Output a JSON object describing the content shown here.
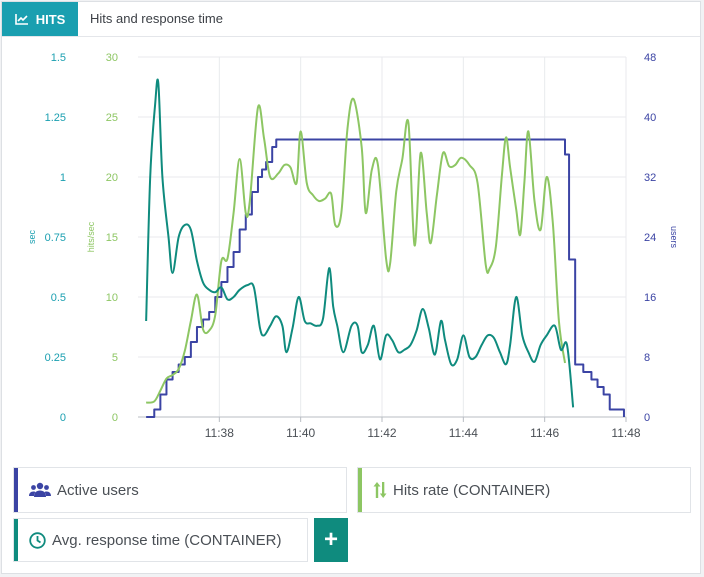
{
  "header": {
    "tab_label": "HITS",
    "title": "Hits and response time"
  },
  "legend": {
    "active_users": "Active users",
    "hits_rate": "Hits rate (CONTAINER)",
    "response_time": "Avg. response time (CONTAINER)",
    "add_label": "+"
  },
  "colors": {
    "accent": "#1a9fb0",
    "users": "#3b44a4",
    "hits": "#8dc663",
    "response": "#0f8b7e"
  },
  "chart_data": {
    "type": "line",
    "x_ticks": [
      "11:38",
      "11:40",
      "11:42",
      "11:44",
      "11:46",
      "11:48"
    ],
    "x_tick_minutes": [
      38,
      40,
      42,
      44,
      46,
      48
    ],
    "xlim": [
      36.0,
      48.0
    ],
    "axes": {
      "sec": {
        "label": "sec",
        "ticks": [
          "0",
          "0.25",
          "0.5",
          "0.75",
          "1",
          "1.25",
          "1.5"
        ],
        "ylim": [
          0,
          1.5
        ]
      },
      "hits": {
        "label": "hits/sec",
        "ticks": [
          "0",
          "5",
          "10",
          "15",
          "20",
          "25",
          "30"
        ],
        "ylim": [
          0,
          30
        ]
      },
      "users": {
        "label": "users",
        "ticks": [
          "0",
          "8",
          "16",
          "24",
          "32",
          "40",
          "48"
        ],
        "ylim": [
          0,
          48
        ]
      }
    },
    "grid": true,
    "series": [
      {
        "name": "Active users",
        "axis": "users",
        "step": true,
        "points": [
          [
            36.2,
            0
          ],
          [
            36.4,
            1
          ],
          [
            36.55,
            3
          ],
          [
            36.7,
            5
          ],
          [
            36.85,
            6
          ],
          [
            37.0,
            7
          ],
          [
            37.15,
            8
          ],
          [
            37.3,
            10
          ],
          [
            37.45,
            12
          ],
          [
            37.6,
            13
          ],
          [
            37.75,
            14
          ],
          [
            37.9,
            16
          ],
          [
            38.05,
            18
          ],
          [
            38.2,
            20
          ],
          [
            38.35,
            22
          ],
          [
            38.5,
            25
          ],
          [
            38.65,
            27
          ],
          [
            38.8,
            30
          ],
          [
            38.95,
            32
          ],
          [
            39.05,
            33
          ],
          [
            39.15,
            34
          ],
          [
            39.3,
            36
          ],
          [
            39.4,
            37
          ],
          [
            46.3,
            37
          ],
          [
            46.5,
            35
          ],
          [
            46.6,
            21
          ],
          [
            46.75,
            7
          ],
          [
            46.95,
            6
          ],
          [
            47.15,
            5
          ],
          [
            47.3,
            4
          ],
          [
            47.45,
            3
          ],
          [
            47.6,
            1
          ],
          [
            47.95,
            0
          ]
        ]
      },
      {
        "name": "Hits rate (CONTAINER)",
        "axis": "hits",
        "step": false,
        "points": [
          [
            36.2,
            1.2
          ],
          [
            36.4,
            1.3
          ],
          [
            36.55,
            2.2
          ],
          [
            36.7,
            3.2
          ],
          [
            36.85,
            3.5
          ],
          [
            37.0,
            4.0
          ],
          [
            37.15,
            5.5
          ],
          [
            37.3,
            8.0
          ],
          [
            37.45,
            10.2
          ],
          [
            37.6,
            7.3
          ],
          [
            37.75,
            7.2
          ],
          [
            37.9,
            8.5
          ],
          [
            38.05,
            13.0
          ],
          [
            38.2,
            13.2
          ],
          [
            38.35,
            17.0
          ],
          [
            38.5,
            21.5
          ],
          [
            38.65,
            17.0
          ],
          [
            38.75,
            18.0
          ],
          [
            38.95,
            25.8
          ],
          [
            39.1,
            23.2
          ],
          [
            39.25,
            20.0
          ],
          [
            39.45,
            20.3
          ],
          [
            39.6,
            21.0
          ],
          [
            39.75,
            20.8
          ],
          [
            39.9,
            19.5
          ],
          [
            40.0,
            23.8
          ],
          [
            40.15,
            19.5
          ],
          [
            40.3,
            18.5
          ],
          [
            40.45,
            18.0
          ],
          [
            40.6,
            18.2
          ],
          [
            40.75,
            18.6
          ],
          [
            40.85,
            16.0
          ],
          [
            41.0,
            17.0
          ],
          [
            41.15,
            24.0
          ],
          [
            41.3,
            26.5
          ],
          [
            41.5,
            22.5
          ],
          [
            41.6,
            17.0
          ],
          [
            41.75,
            20.6
          ],
          [
            41.9,
            21.0
          ],
          [
            42.1,
            13.2
          ],
          [
            42.2,
            12.8
          ],
          [
            42.35,
            18.8
          ],
          [
            42.5,
            21.5
          ],
          [
            42.65,
            24.5
          ],
          [
            42.8,
            14.3
          ],
          [
            42.95,
            22.0
          ],
          [
            43.1,
            17.0
          ],
          [
            43.2,
            14.5
          ],
          [
            43.35,
            18.5
          ],
          [
            43.5,
            22.0
          ],
          [
            43.65,
            20.9
          ],
          [
            43.8,
            21.0
          ],
          [
            43.95,
            21.6
          ],
          [
            44.15,
            21.0
          ],
          [
            44.35,
            19.5
          ],
          [
            44.55,
            12.7
          ],
          [
            44.65,
            12.4
          ],
          [
            44.8,
            14.2
          ],
          [
            44.95,
            20.2
          ],
          [
            45.05,
            23.3
          ],
          [
            45.15,
            20.8
          ],
          [
            45.3,
            17.3
          ],
          [
            45.4,
            15.2
          ],
          [
            45.5,
            19.5
          ],
          [
            45.6,
            23.8
          ],
          [
            45.75,
            18.0
          ],
          [
            45.9,
            15.6
          ],
          [
            46.05,
            20.0
          ],
          [
            46.2,
            16.2
          ],
          [
            46.35,
            8.0
          ],
          [
            46.5,
            4.5
          ]
        ]
      },
      {
        "name": "Avg. response time (CONTAINER)",
        "axis": "sec",
        "step": false,
        "points": [
          [
            36.2,
            0.4
          ],
          [
            36.3,
            1.0
          ],
          [
            36.42,
            1.3
          ],
          [
            36.5,
            1.39
          ],
          [
            36.6,
            1.0
          ],
          [
            36.75,
            0.75
          ],
          [
            36.85,
            0.6
          ],
          [
            37.0,
            0.75
          ],
          [
            37.15,
            0.8
          ],
          [
            37.3,
            0.78
          ],
          [
            37.45,
            0.65
          ],
          [
            37.6,
            0.56
          ],
          [
            37.75,
            0.53
          ],
          [
            37.9,
            0.52
          ],
          [
            38.05,
            0.54
          ],
          [
            38.2,
            0.49
          ],
          [
            38.35,
            0.5
          ],
          [
            38.5,
            0.53
          ],
          [
            38.7,
            0.55
          ],
          [
            38.85,
            0.54
          ],
          [
            39.0,
            0.37
          ],
          [
            39.1,
            0.34
          ],
          [
            39.25,
            0.38
          ],
          [
            39.4,
            0.42
          ],
          [
            39.55,
            0.38
          ],
          [
            39.65,
            0.27
          ],
          [
            39.8,
            0.37
          ],
          [
            39.95,
            0.5
          ],
          [
            40.1,
            0.4
          ],
          [
            40.25,
            0.39
          ],
          [
            40.4,
            0.38
          ],
          [
            40.55,
            0.41
          ],
          [
            40.7,
            0.62
          ],
          [
            40.8,
            0.46
          ],
          [
            40.9,
            0.38
          ],
          [
            41.05,
            0.27
          ],
          [
            41.25,
            0.38
          ],
          [
            41.4,
            0.38
          ],
          [
            41.5,
            0.27
          ],
          [
            41.65,
            0.3
          ],
          [
            41.8,
            0.38
          ],
          [
            41.95,
            0.24
          ],
          [
            42.1,
            0.34
          ],
          [
            42.25,
            0.32
          ],
          [
            42.4,
            0.27
          ],
          [
            42.55,
            0.28
          ],
          [
            42.7,
            0.3
          ],
          [
            42.85,
            0.36
          ],
          [
            43.0,
            0.45
          ],
          [
            43.15,
            0.37
          ],
          [
            43.3,
            0.26
          ],
          [
            43.45,
            0.4
          ],
          [
            43.55,
            0.32
          ],
          [
            43.7,
            0.22
          ],
          [
            43.85,
            0.24
          ],
          [
            44.0,
            0.34
          ],
          [
            44.15,
            0.25
          ],
          [
            44.3,
            0.25
          ],
          [
            44.45,
            0.3
          ],
          [
            44.6,
            0.34
          ],
          [
            44.75,
            0.33
          ],
          [
            44.9,
            0.27
          ],
          [
            45.05,
            0.22
          ],
          [
            45.15,
            0.3
          ],
          [
            45.3,
            0.5
          ],
          [
            45.45,
            0.34
          ],
          [
            45.6,
            0.27
          ],
          [
            45.75,
            0.23
          ],
          [
            45.9,
            0.3
          ],
          [
            46.05,
            0.34
          ],
          [
            46.25,
            0.38
          ],
          [
            46.4,
            0.28
          ],
          [
            46.55,
            0.3
          ],
          [
            46.7,
            0.04
          ]
        ]
      }
    ]
  }
}
